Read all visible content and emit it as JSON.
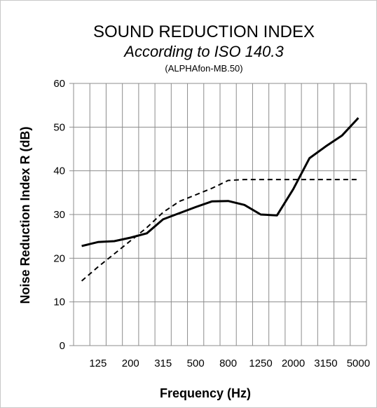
{
  "chart_data": {
    "type": "line",
    "title": "SOUND REDUCTION INDEX",
    "subtitle": "According to ISO 140.3",
    "note": "(ALPHAfon-MB.50)",
    "xlabel": "Frequency (Hz)",
    "ylabel": "Noise Reduction Index R (dB)",
    "ylim": [
      0,
      60
    ],
    "yticks": [
      0,
      10,
      20,
      30,
      40,
      50,
      60
    ],
    "x": [
      100,
      125,
      160,
      200,
      250,
      315,
      400,
      500,
      630,
      800,
      1000,
      1250,
      1600,
      2000,
      2500,
      3150,
      4000,
      5000
    ],
    "xtick_labels": [
      "125",
      "200",
      "315",
      "500",
      "800",
      "1250",
      "2000",
      "3150",
      "5000"
    ],
    "xtick_values": [
      125,
      200,
      315,
      500,
      800,
      1250,
      2000,
      3150,
      5000
    ],
    "grid": true,
    "series": [
      {
        "style": "solid",
        "color": "#000000",
        "values": [
          22.8,
          23.7,
          23.9,
          24.7,
          25.7,
          28.9,
          30.3,
          31.7,
          33.0,
          33.1,
          32.2,
          30.0,
          29.8,
          35.8,
          42.9,
          45.6,
          48.1,
          52.1
        ]
      },
      {
        "style": "dashed",
        "color": "#000000",
        "values": [
          14.8,
          18.0,
          21.0,
          24.0,
          27.0,
          30.5,
          33.0,
          34.5,
          36.0,
          37.8,
          38.0,
          38.0,
          38.0,
          38.0,
          38.0,
          38.0,
          38.0,
          38.0
        ]
      }
    ]
  }
}
